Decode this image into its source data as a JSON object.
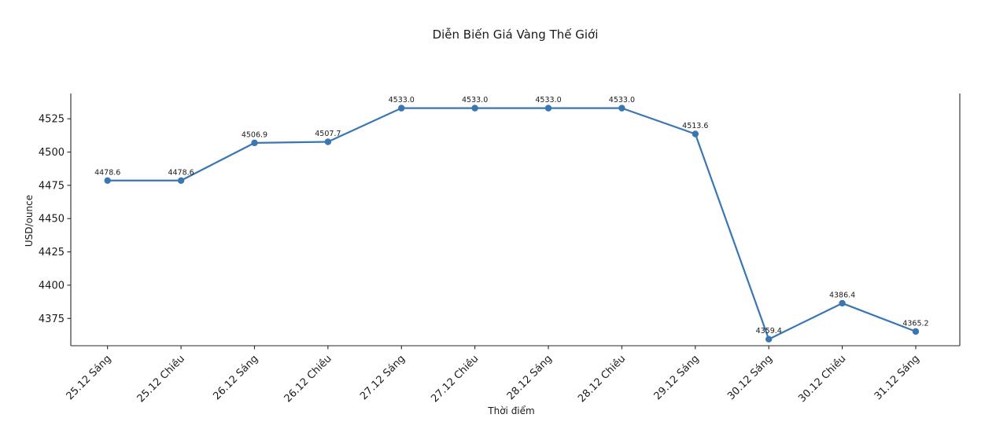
{
  "chart_data": {
    "type": "line",
    "title": "Diễn Biến Giá Vàng Thế Giới",
    "xlabel": "Thời điểm",
    "ylabel": "USD/ounce",
    "categories": [
      "25.12 Sáng",
      "25.12 Chiều",
      "26.12 Sáng",
      "26.12 Chiều",
      "27.12 Sáng",
      "27.12 Chiều",
      "28.12 Sáng",
      "28.12 Chiều",
      "29.12 Sáng",
      "30.12 Sáng",
      "30.12 Chiều",
      "31.12 Sáng"
    ],
    "values": [
      4478.6,
      4478.6,
      4506.9,
      4507.7,
      4533.0,
      4533.0,
      4533.0,
      4533.0,
      4513.6,
      4359.4,
      4386.4,
      4365.2
    ],
    "point_labels": [
      "4478.6",
      "4478.6",
      "4506.9",
      "4507.7",
      "4533.0",
      "4533.0",
      "4533.0",
      "4533.0",
      "4513.6",
      "4359.4",
      "4386.4",
      "4365.2"
    ],
    "yticks": [
      4375,
      4400,
      4425,
      4450,
      4475,
      4500,
      4525
    ],
    "ylim": [
      4354.5,
      4544.0
    ],
    "grid": false,
    "legend": null,
    "line_color": "#3a76b2",
    "marker_color": "#3a76b2",
    "axis_color": "#262626",
    "text_color": "#1a1a1a"
  }
}
